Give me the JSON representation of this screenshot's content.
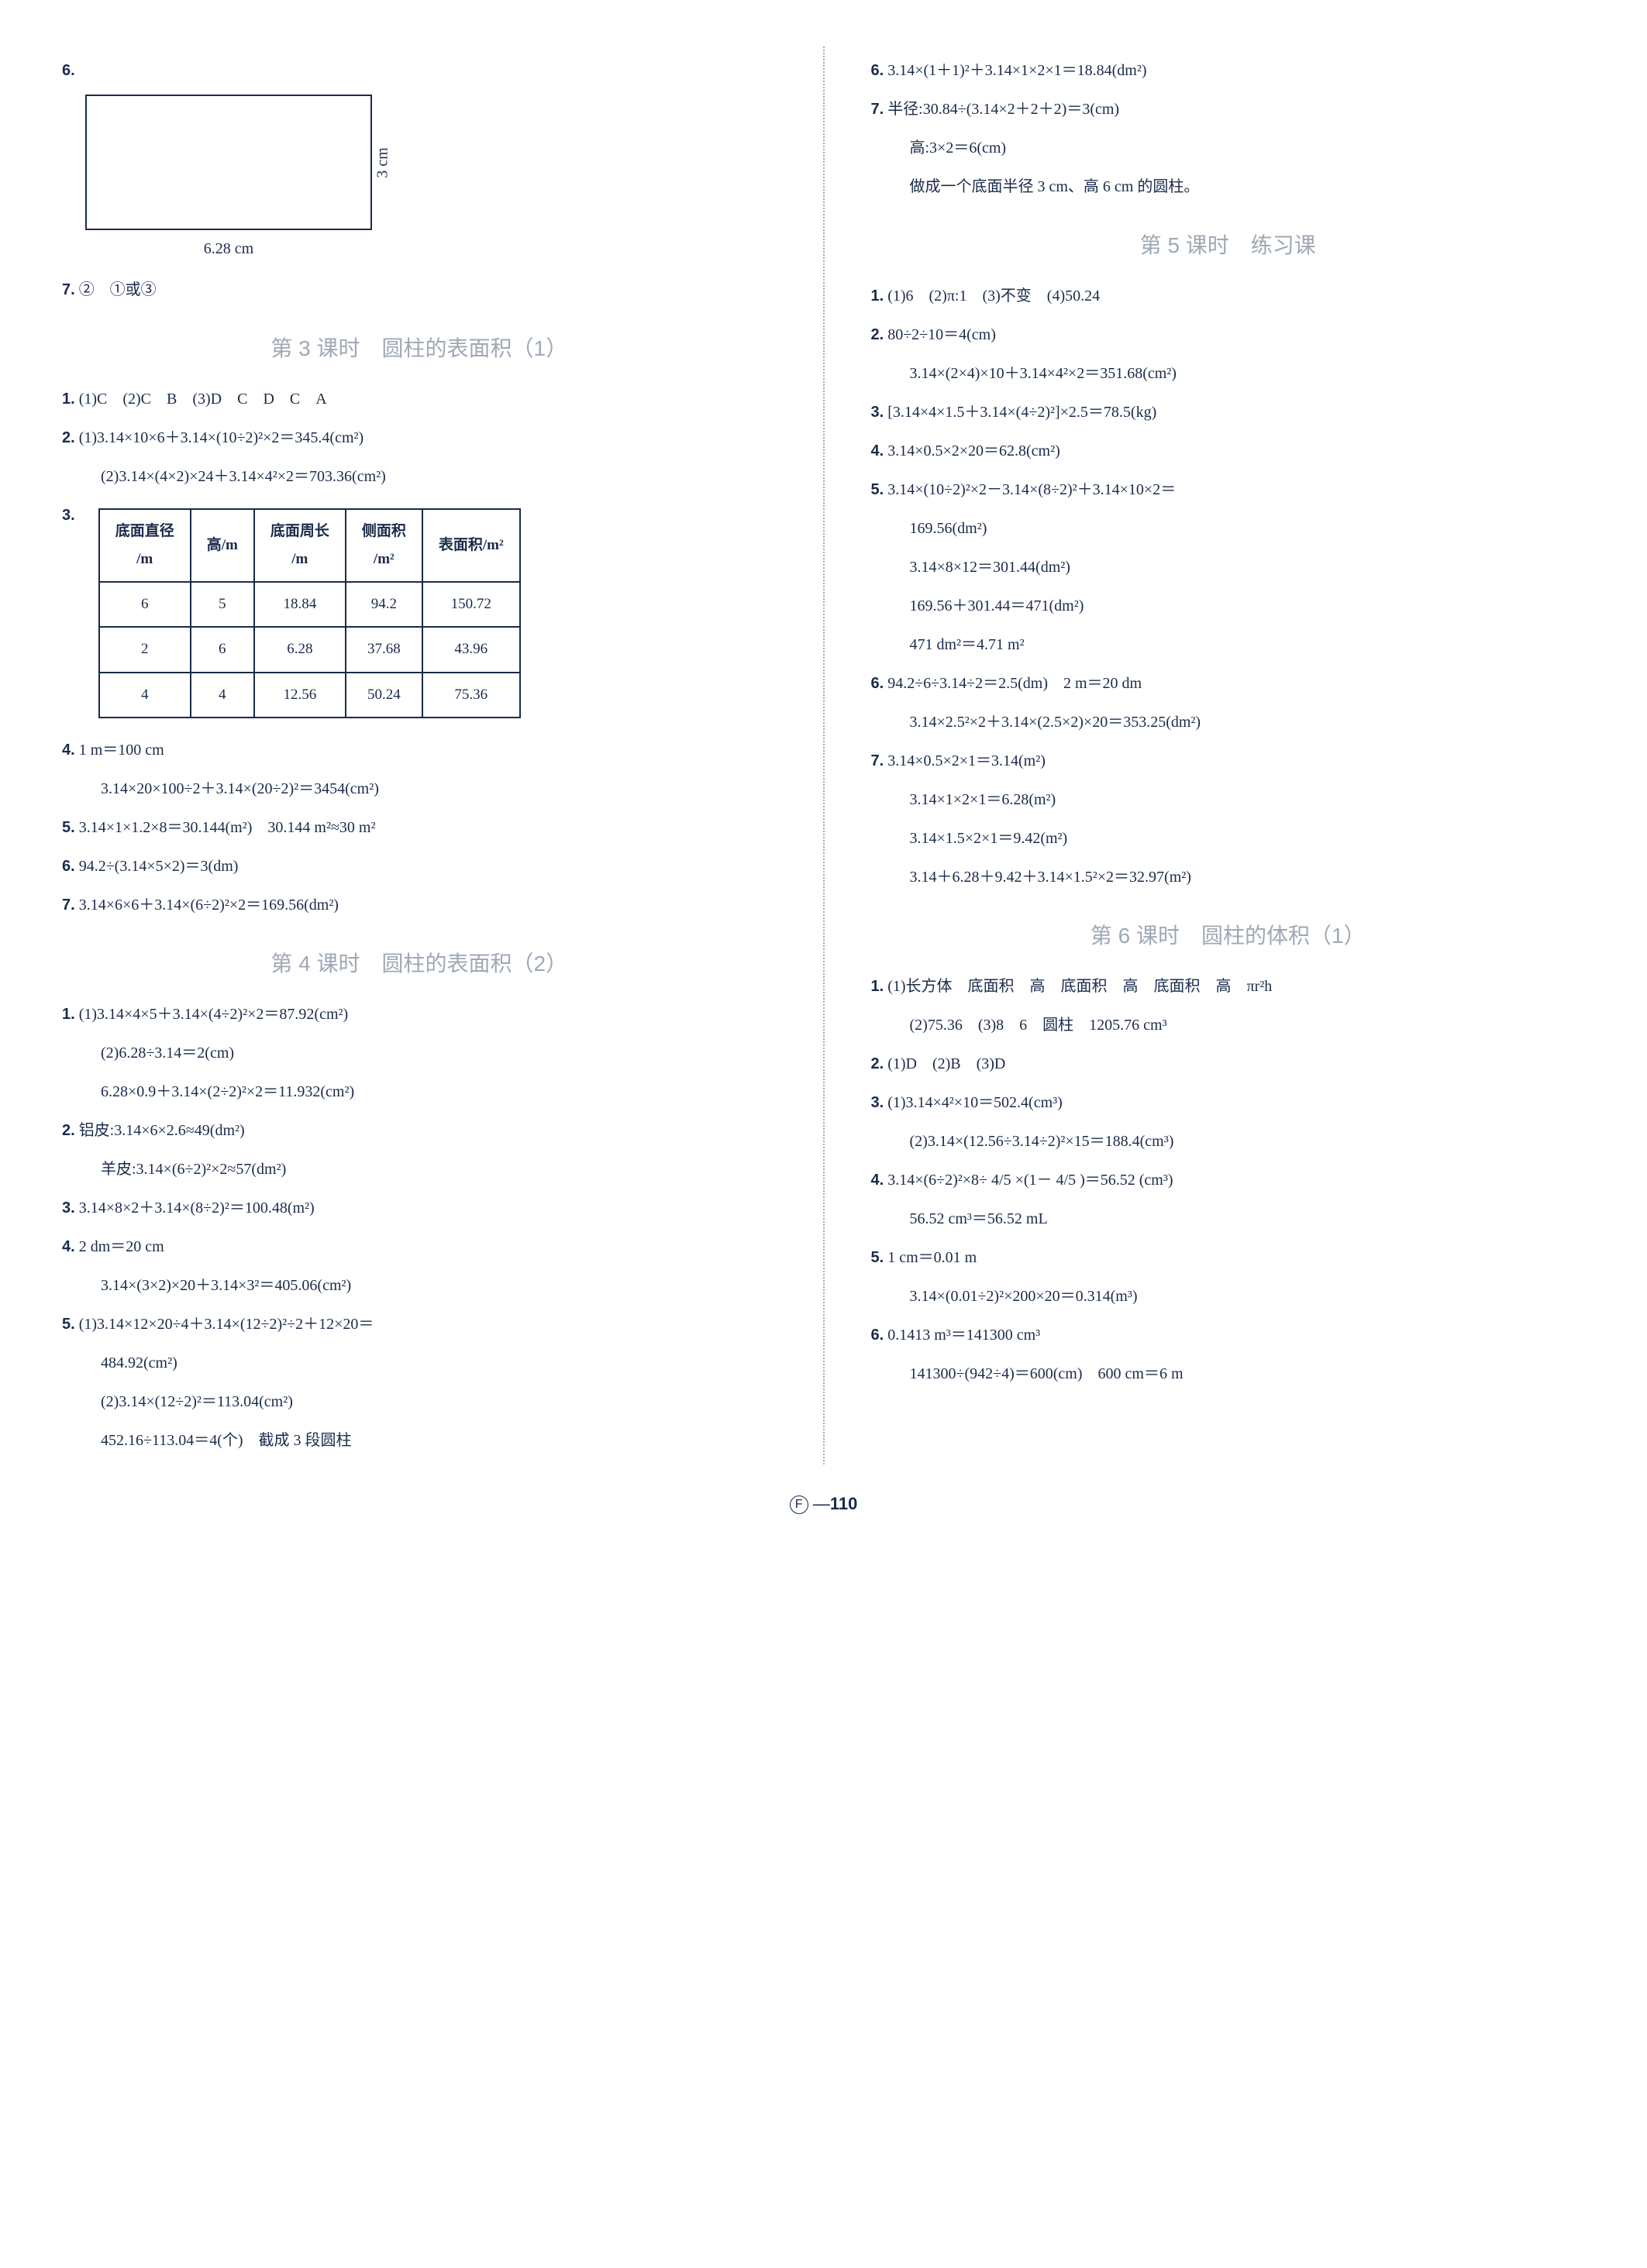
{
  "left_col": {
    "p6": {
      "num": "6.",
      "rect": {
        "w_label": "6.28 cm",
        "h_label": "3 cm"
      }
    },
    "p7": {
      "num": "7.",
      "text": "②　①或③"
    },
    "title3": "第 3 课时　圆柱的表面积（1）",
    "p1a": {
      "num": "1.",
      "text": "(1)C　(2)C　B　(3)D　C　D　C　A"
    },
    "p2a": {
      "num": "2.",
      "text": "(1)3.14×10×6＋3.14×(10÷2)²×2＝345.4(cm²)"
    },
    "p2a2": "(2)3.14×(4×2)×24＋3.14×4²×2＝703.36(cm²)",
    "p3a": {
      "num": "3."
    },
    "table": {
      "headers": [
        "底面直径\n/m",
        "高/m",
        "底面周长\n/m",
        "侧面积\n/m²",
        "表面积/m²"
      ],
      "rows": [
        [
          "6",
          "5",
          "18.84",
          "94.2",
          "150.72"
        ],
        [
          "2",
          "6",
          "6.28",
          "37.68",
          "43.96"
        ],
        [
          "4",
          "4",
          "12.56",
          "50.24",
          "75.36"
        ]
      ]
    },
    "p4a": {
      "num": "4.",
      "text": "1 m＝100 cm"
    },
    "p4a2": "3.14×20×100÷2＋3.14×(20÷2)²＝3454(cm²)",
    "p5a": {
      "num": "5.",
      "text": "3.14×1×1.2×8＝30.144(m²)　30.144 m²≈30 m²"
    },
    "p6a": {
      "num": "6.",
      "text": "94.2÷(3.14×5×2)＝3(dm)"
    },
    "p7a": {
      "num": "7.",
      "text": "3.14×6×6＋3.14×(6÷2)²×2＝169.56(dm²)"
    },
    "title4": "第 4 课时　圆柱的表面积（2）",
    "p1b": {
      "num": "1.",
      "text": "(1)3.14×4×5＋3.14×(4÷2)²×2＝87.92(cm²)"
    },
    "p1b2": "(2)6.28÷3.14＝2(cm)",
    "p1b3": "6.28×0.9＋3.14×(2÷2)²×2＝11.932(cm²)",
    "p2b": {
      "num": "2.",
      "text": "铝皮:3.14×6×2.6≈49(dm²)"
    },
    "p2b2": "羊皮:3.14×(6÷2)²×2≈57(dm²)",
    "p3b": {
      "num": "3.",
      "text": "3.14×8×2＋3.14×(8÷2)²＝100.48(m²)"
    },
    "p4b": {
      "num": "4.",
      "text": "2 dm＝20 cm"
    },
    "p4b2": "3.14×(3×2)×20＋3.14×3²＝405.06(cm²)",
    "p5b": {
      "num": "5.",
      "text": "(1)3.14×12×20÷4＋3.14×(12÷2)²÷2＋12×20＝"
    },
    "p5b2": "484.92(cm²)",
    "p5b3": "(2)3.14×(12÷2)²＝113.04(cm²)",
    "p5b4": "452.16÷113.04＝4(个)　截成 3 段圆柱"
  },
  "right_col": {
    "p6c": {
      "num": "6.",
      "text": "3.14×(1＋1)²＋3.14×1×2×1＝18.84(dm²)"
    },
    "p7c": {
      "num": "7.",
      "text": "半径:30.84÷(3.14×2＋2＋2)＝3(cm)"
    },
    "p7c2": "高:3×2＝6(cm)",
    "p7c3": "做成一个底面半径 3 cm、高 6 cm 的圆柱。",
    "title5": "第 5 课时　练习课",
    "p1d": {
      "num": "1.",
      "text": "(1)6　(2)π:1　(3)不变　(4)50.24"
    },
    "p2d": {
      "num": "2.",
      "text": "80÷2÷10＝4(cm)"
    },
    "p2d2": "3.14×(2×4)×10＋3.14×4²×2＝351.68(cm²)",
    "p3d": {
      "num": "3.",
      "text": "[3.14×4×1.5＋3.14×(4÷2)²]×2.5＝78.5(kg)"
    },
    "p4d": {
      "num": "4.",
      "text": "3.14×0.5×2×20＝62.8(cm²)"
    },
    "p5d": {
      "num": "5.",
      "text": "3.14×(10÷2)²×2－3.14×(8÷2)²＋3.14×10×2＝"
    },
    "p5d2": "169.56(dm²)",
    "p5d3": "3.14×8×12＝301.44(dm²)",
    "p5d4": "169.56＋301.44＝471(dm²)",
    "p5d5": "471 dm²＝4.71 m²",
    "p6d": {
      "num": "6.",
      "text": "94.2÷6÷3.14÷2＝2.5(dm)　2 m＝20 dm"
    },
    "p6d2": "3.14×2.5²×2＋3.14×(2.5×2)×20＝353.25(dm²)",
    "p7d": {
      "num": "7.",
      "text": "3.14×0.5×2×1＝3.14(m²)"
    },
    "p7d2": "3.14×1×2×1＝6.28(m²)",
    "p7d3": "3.14×1.5×2×1＝9.42(m²)",
    "p7d4": "3.14＋6.28＋9.42＋3.14×1.5²×2＝32.97(m²)",
    "title6": "第 6 课时　圆柱的体积（1）",
    "p1e": {
      "num": "1.",
      "text": "(1)长方体　底面积　高　底面积　高　底面积　高　πr²h"
    },
    "p1e2": "(2)75.36　(3)8　6　圆柱　1205.76 cm³",
    "p2e": {
      "num": "2.",
      "text": "(1)D　(2)B　(3)D"
    },
    "p3e": {
      "num": "3.",
      "text": "(1)3.14×4²×10＝502.4(cm³)"
    },
    "p3e2": "(2)3.14×(12.56÷3.14÷2)²×15＝188.4(cm³)",
    "p4e": {
      "num": "4.",
      "text": "3.14×(6÷2)²×8÷ 4/5 ×(1－ 4/5 )＝56.52 (cm³)"
    },
    "p4e2": "56.52 cm³＝56.52 mL",
    "p5e": {
      "num": "5.",
      "text": "1 cm＝0.01 m"
    },
    "p5e2": "3.14×(0.01÷2)²×200×20＝0.314(m³)",
    "p6e": {
      "num": "6.",
      "text": "0.1413 m³＝141300 cm³"
    },
    "p6e2": "141300÷(942÷4)＝600(cm)　600 cm＝6 m"
  },
  "page_number": "110",
  "page_prefix": "F"
}
